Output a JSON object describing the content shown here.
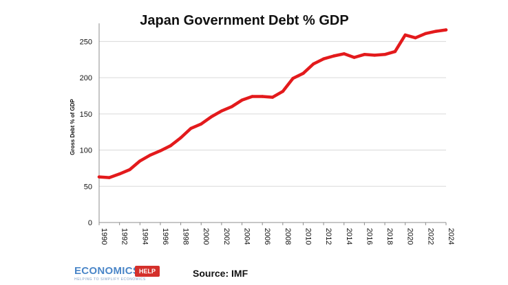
{
  "chart_data": {
    "type": "line",
    "title": "Japan Government Debt % GDP",
    "xlabel": "",
    "ylabel": "Gross Debt % of GDP",
    "ylim": [
      0,
      275
    ],
    "yticks": [
      "0",
      "50",
      "100",
      "150",
      "200",
      "250"
    ],
    "xticks": [
      "1990",
      "1992",
      "1994",
      "1996",
      "1998",
      "2000",
      "2002",
      "2004",
      "2006",
      "2008",
      "2010",
      "2012",
      "2014",
      "2016",
      "2018",
      "2020",
      "2022",
      "2024"
    ],
    "grid": true,
    "series": [
      {
        "color": "#e31a1c",
        "x": [
          1990,
          1991,
          1992,
          1993,
          1994,
          1995,
          1996,
          1997,
          1998,
          1999,
          2000,
          2001,
          2002,
          2003,
          2004,
          2005,
          2006,
          2007,
          2008,
          2009,
          2010,
          2011,
          2012,
          2013,
          2014,
          2015,
          2016,
          2017,
          2018,
          2019,
          2020,
          2021,
          2022,
          2023,
          2024
        ],
        "values": [
          63,
          62,
          67,
          73,
          85,
          93,
          99,
          106,
          117,
          130,
          136,
          146,
          154,
          160,
          169,
          174,
          174,
          173,
          181,
          199,
          206,
          219,
          226,
          230,
          233,
          228,
          232,
          231,
          232,
          236,
          259,
          255,
          261,
          264,
          266
        ]
      }
    ]
  },
  "footer": {
    "source": "Source: IMF",
    "logo_word": "ECONOMICS",
    "logo_badge": "HELP",
    "logo_tagline": "HELPING TO SIMPLIFY ECONOMICS"
  }
}
